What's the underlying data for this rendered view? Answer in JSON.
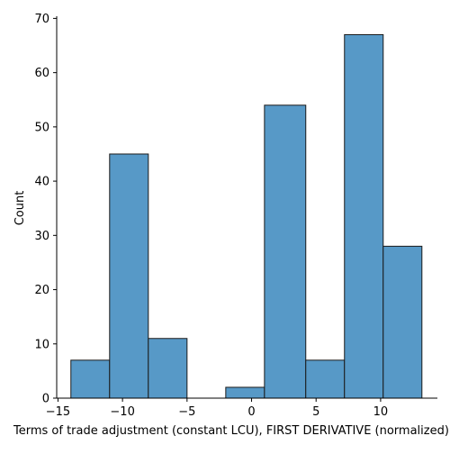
{
  "chart_data": {
    "type": "bar",
    "subtype": "histogram",
    "xlabel": "Terms of trade adjustment (constant LCU), FIRST DERIVATIVE (normalized)",
    "ylabel": "Count",
    "bins": [
      {
        "start": -14.0,
        "end": -11.0,
        "count": 7
      },
      {
        "start": -11.0,
        "end": -8.0,
        "count": 45
      },
      {
        "start": -8.0,
        "end": -5.0,
        "count": 11
      },
      {
        "start": -5.0,
        "end": -2.0,
        "count": 0
      },
      {
        "start": -2.0,
        "end": 1.0,
        "count": 2
      },
      {
        "start": 1.0,
        "end": 4.2,
        "count": 54
      },
      {
        "start": 4.2,
        "end": 7.2,
        "count": 7
      },
      {
        "start": 7.2,
        "end": 10.2,
        "count": 67
      },
      {
        "start": 10.2,
        "end": 13.2,
        "count": 28
      }
    ],
    "xlim": [
      -15.1,
      14.4
    ],
    "ylim": [
      0,
      70.4
    ],
    "xticks": [
      -15,
      -10,
      -5,
      0,
      5,
      10
    ],
    "xtick_labels": [
      "−15",
      "−10",
      "−5",
      "0",
      "5",
      "10"
    ],
    "yticks": [
      0,
      10,
      20,
      30,
      40,
      50,
      60,
      70
    ],
    "ytick_labels": [
      "0",
      "10",
      "20",
      "30",
      "40",
      "50",
      "60",
      "70"
    ],
    "grid": false,
    "colors": {
      "bar_fill": "#5799c7",
      "bar_edge": "#1a1a1a",
      "axis": "#000000"
    }
  }
}
